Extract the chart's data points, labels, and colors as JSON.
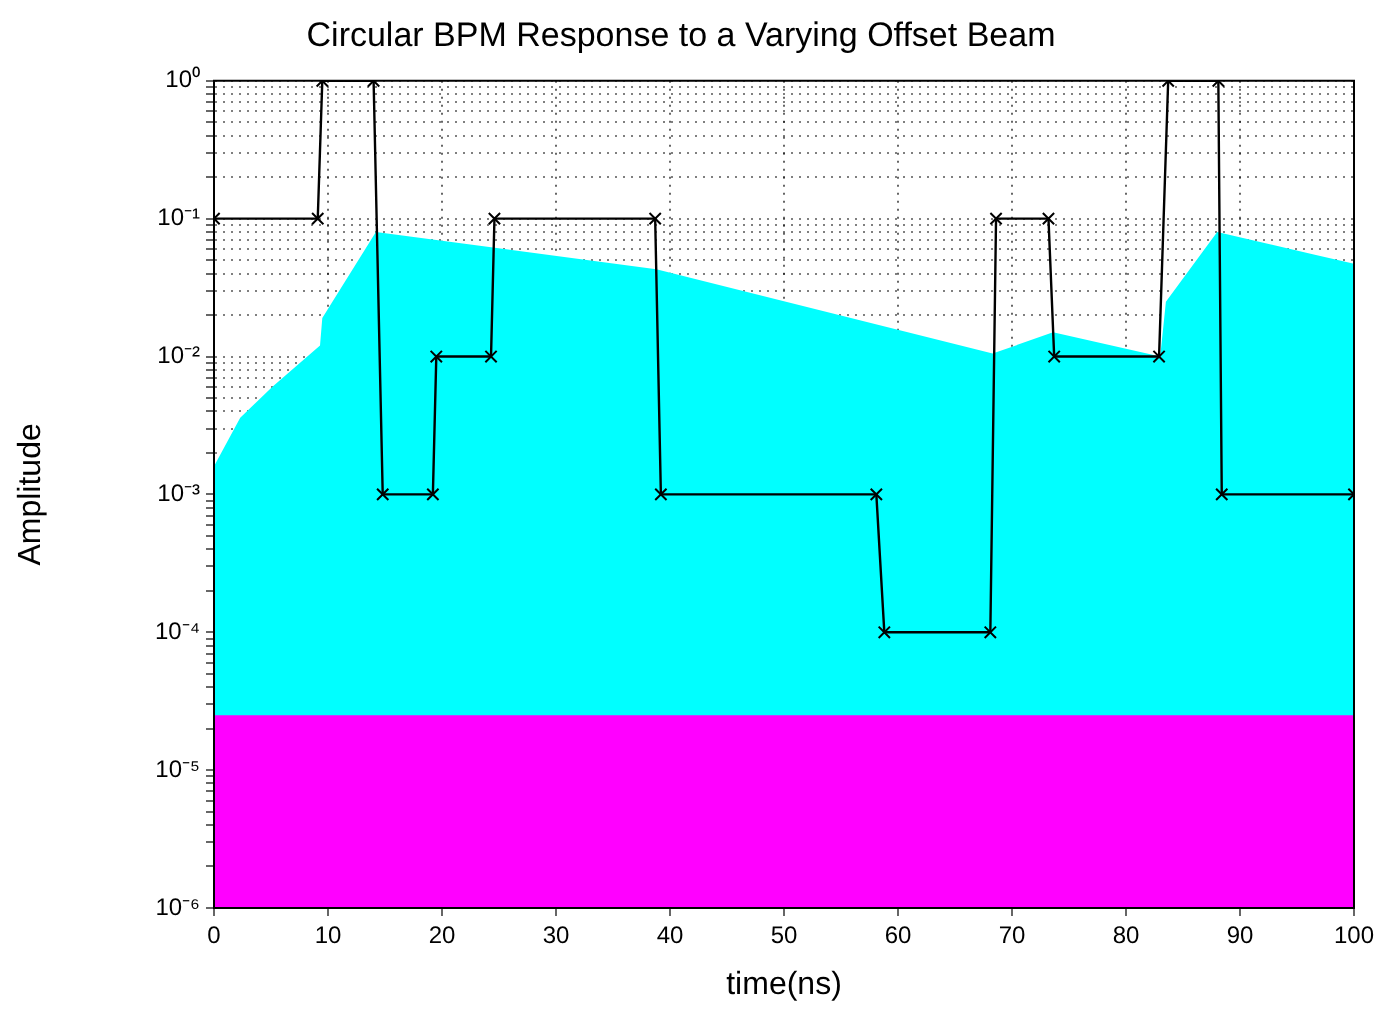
{
  "chart_data": {
    "type": "area",
    "title": "Circular BPM Response to a Varying Offset Beam",
    "xlabel": "time(ns)",
    "ylabel": "Amplitude",
    "log": "y",
    "grid": true,
    "marker": "none",
    "xlim": [
      0,
      100
    ],
    "xticks": [
      0,
      10,
      20,
      30,
      40,
      50,
      60,
      70,
      80,
      90,
      100
    ],
    "ylim": [
      1e-06,
      1
    ],
    "yticks": [
      {
        "value": 1e-06,
        "label": "10⁻⁶"
      },
      {
        "value": 2e-06,
        "label": null
      },
      {
        "value": 3e-06,
        "label": null
      },
      {
        "value": 4e-06,
        "label": null
      },
      {
        "value": 5e-06,
        "label": null
      },
      {
        "value": 6e-06,
        "label": null
      },
      {
        "value": 7e-06,
        "label": null
      },
      {
        "value": 8e-06,
        "label": null
      },
      {
        "value": 9e-06,
        "label": null
      },
      {
        "value": 1e-05,
        "label": "10⁻⁵"
      },
      {
        "value": 2e-05,
        "label": null
      },
      {
        "value": 3e-05,
        "label": null
      },
      {
        "value": 4e-05,
        "label": null
      },
      {
        "value": 5e-05,
        "label": null
      },
      {
        "value": 6e-05,
        "label": null
      },
      {
        "value": 7e-05,
        "label": null
      },
      {
        "value": 8e-05,
        "label": null
      },
      {
        "value": 9e-05,
        "label": null
      },
      {
        "value": 0.0001,
        "label": "10⁻⁴"
      },
      {
        "value": 0.0002,
        "label": null
      },
      {
        "value": 0.0003,
        "label": null
      },
      {
        "value": 0.0004,
        "label": null
      },
      {
        "value": 0.0005,
        "label": null
      },
      {
        "value": 0.0006,
        "label": null
      },
      {
        "value": 0.0007,
        "label": null
      },
      {
        "value": 0.0008,
        "label": null
      },
      {
        "value": 0.0009,
        "label": null
      },
      {
        "value": 0.001,
        "label": "10⁻³"
      },
      {
        "value": 0.002,
        "label": null
      },
      {
        "value": 0.003,
        "label": null
      },
      {
        "value": 0.004,
        "label": null
      },
      {
        "value": 0.005,
        "label": null
      },
      {
        "value": 0.006,
        "label": null
      },
      {
        "value": 0.007,
        "label": null
      },
      {
        "value": 0.008,
        "label": null
      },
      {
        "value": 0.009,
        "label": null
      },
      {
        "value": 0.01,
        "label": "10⁻²"
      },
      {
        "value": 0.02,
        "label": null
      },
      {
        "value": 0.03,
        "label": null
      },
      {
        "value": 0.04,
        "label": null
      },
      {
        "value": 0.05,
        "label": null
      },
      {
        "value": 0.06,
        "label": null
      },
      {
        "value": 0.07,
        "label": null
      },
      {
        "value": 0.08,
        "label": null
      },
      {
        "value": 0.09,
        "label": null
      },
      {
        "value": 0.1,
        "label": "10⁻¹"
      },
      {
        "value": 0.2,
        "label": null
      },
      {
        "value": 0.3,
        "label": null
      },
      {
        "value": 0.4,
        "label": null
      },
      {
        "value": 0.5,
        "label": null
      },
      {
        "value": 0.6,
        "label": null
      },
      {
        "value": 0.7,
        "label": null
      },
      {
        "value": 0.8,
        "label": null
      },
      {
        "value": 0.9,
        "label": null
      },
      {
        "value": 1,
        "label": "10⁰"
      }
    ],
    "series": [
      {
        "color": "#00ffff",
        "x": [
          0,
          2.3,
          5.1,
          9.3,
          9.5,
          14.2,
          38.8,
          68.3,
          73.6,
          83,
          83.5,
          88,
          100
        ],
        "values": [
          0.0016,
          0.0036,
          0.006,
          0.012,
          0.019,
          0.08,
          0.043,
          0.0105,
          0.015,
          0.01,
          0.025,
          0.08,
          0.047
        ]
      },
      {
        "color": "#ff00ff",
        "x": [
          0,
          100
        ],
        "values": [
          2.5e-05,
          2.5e-05
        ]
      },
      {
        "type": "line",
        "color": "#000000",
        "marker": "cross",
        "x": [
          0,
          9.1,
          9.5,
          14,
          14.8,
          19.2,
          19.5,
          24.3,
          24.6,
          38.7,
          39.2,
          58.1,
          58.8,
          68.1,
          68.6,
          73.2,
          73.7,
          82.9,
          83.7,
          88.1,
          88.4,
          100
        ],
        "values": [
          0.1,
          0.1,
          1,
          1,
          0.001,
          0.001,
          0.01,
          0.01,
          0.1,
          0.1,
          0.001,
          0.001,
          0.0001,
          0.0001,
          0.1,
          0.1,
          0.01,
          0.01,
          1,
          1,
          0.001,
          0.001
        ]
      }
    ]
  }
}
